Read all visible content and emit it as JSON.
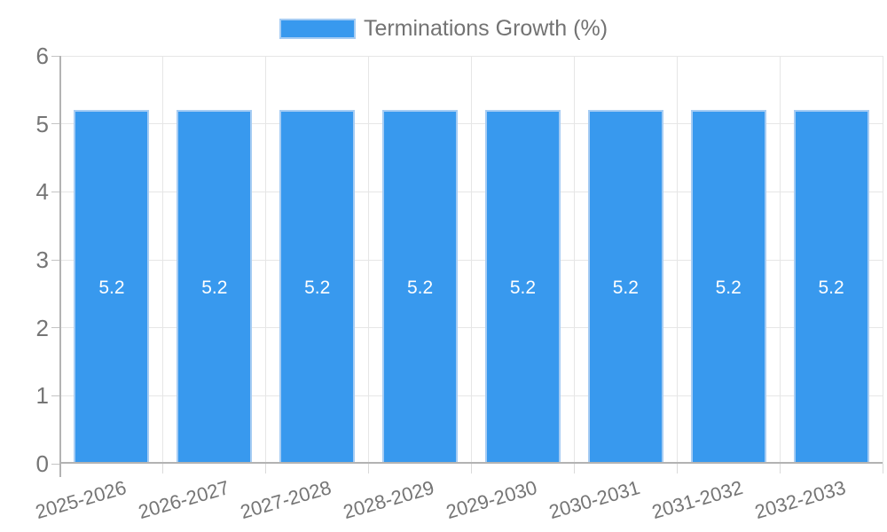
{
  "chart_data": {
    "type": "bar",
    "title": "",
    "legend": {
      "position": "top",
      "entries": [
        "Terminations Growth (%)"
      ]
    },
    "categories": [
      "2025-2026",
      "2026-2027",
      "2027-2028",
      "2028-2029",
      "2029-2030",
      "2030-2031",
      "2031-2032",
      "2032-2033"
    ],
    "series": [
      {
        "name": "Terminations Growth (%)",
        "values": [
          5.2,
          5.2,
          5.2,
          5.2,
          5.2,
          5.2,
          5.2,
          5.2
        ]
      }
    ],
    "bar_value_labels": [
      "5.2",
      "5.2",
      "5.2",
      "5.2",
      "5.2",
      "5.2",
      "5.2",
      "5.2"
    ],
    "xlabel": "",
    "ylabel": "",
    "ylim": [
      0,
      6
    ],
    "yticks": [
      "0",
      "1",
      "2",
      "3",
      "4",
      "5",
      "6"
    ],
    "grid": true,
    "x_tick_rotation_deg": -16,
    "colors": {
      "bar_fill": "#3899EE",
      "bar_border": "#A6CCF3",
      "gridline": "#E6E6E6",
      "axis_line": "#B3B3B3",
      "y_tick_mark": "#C4C4C4",
      "x_tick_mark": "#DADADA",
      "tick_label": "#757575",
      "legend_label": "#737373",
      "bar_label": "#FFFFFF"
    }
  }
}
